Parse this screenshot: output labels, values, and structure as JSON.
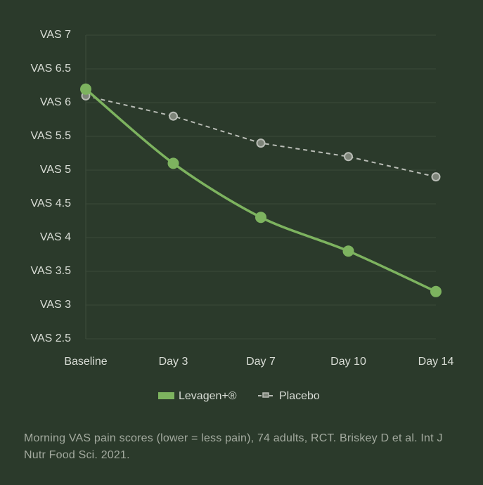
{
  "chart_data": {
    "type": "line",
    "categories": [
      "Baseline",
      "Day 3",
      "Day 7",
      "Day 10",
      "Day 14"
    ],
    "series": [
      {
        "name": "Levagen+®",
        "color": "#7db35f",
        "values": [
          6.2,
          5.1,
          4.3,
          3.8,
          3.2
        ]
      },
      {
        "name": "Placebo",
        "color": "#b9bdb6",
        "values": [
          6.1,
          5.8,
          5.4,
          5.2,
          4.9
        ]
      }
    ],
    "ylim": [
      2.5,
      7
    ],
    "yticks": [
      {
        "value": 2.5,
        "label": "VAS 2.5"
      },
      {
        "value": 3,
        "label": "VAS 3"
      },
      {
        "value": 3.5,
        "label": "VAS 3.5"
      },
      {
        "value": 4,
        "label": "VAS 4"
      },
      {
        "value": 4.5,
        "label": "VAS 4.5"
      },
      {
        "value": 5,
        "label": "VAS 5"
      },
      {
        "value": 5.5,
        "label": "VAS 5.5"
      },
      {
        "value": 6,
        "label": "VAS 6"
      },
      {
        "value": 6.5,
        "label": "VAS 6.5"
      },
      {
        "value": 7,
        "label": "VAS 7"
      }
    ],
    "grid": true,
    "legend": "bottom",
    "caption": "Morning VAS pain scores (lower = less pain), 74 adults, RCT. Briskey D et al. Int J Nutr Food Sci. 2021."
  }
}
